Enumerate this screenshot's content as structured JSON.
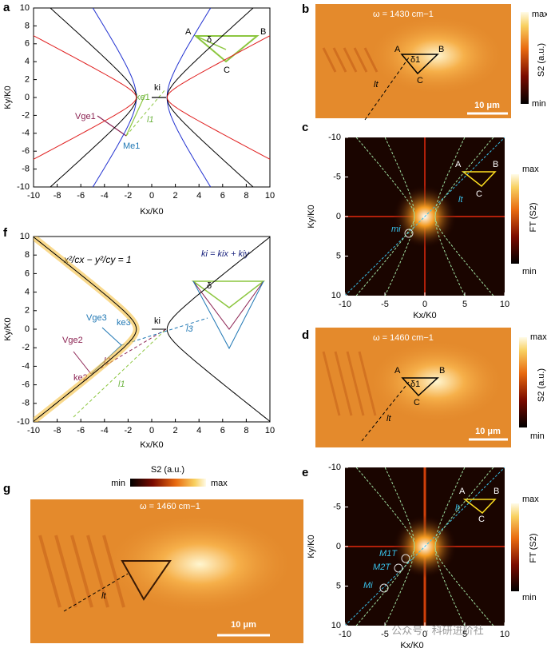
{
  "panels": {
    "a": {
      "label": "a",
      "x_label": "Kx/K0",
      "y_label": "Ky/K0",
      "xticks": [
        -10,
        -8,
        -6,
        -4,
        -2,
        0,
        2,
        4,
        6,
        8,
        10
      ],
      "yticks": [
        -10,
        -8,
        -6,
        -4,
        -2,
        0,
        2,
        4,
        6,
        8,
        10
      ],
      "text": {
        "A": "A",
        "B": "B",
        "C": "C",
        "delta": "δ",
        "ki": "ki",
        "ke1": "ke1",
        "l1": "l1",
        "me1": "Me1",
        "vge1": "Vge1"
      }
    },
    "b": {
      "label": "b",
      "frequency": "ω = 1430 cm−1",
      "text": {
        "A": "A",
        "B": "B",
        "C": "C",
        "delta1": "δ1",
        "lt": "lt"
      },
      "scale_bar": "10 μm",
      "colorbar": {
        "title": "S2 (a.u.)",
        "max": "max",
        "min": "min"
      }
    },
    "c": {
      "label": "c",
      "x_label": "Kx/K0",
      "y_label": "Ky/K0",
      "xticks": [
        -10,
        -5,
        0,
        5,
        10
      ],
      "yticks": [
        -10,
        -5,
        0,
        5,
        10
      ],
      "y_inverted": true,
      "text": {
        "A": "A",
        "B": "B",
        "C": "C",
        "lt": "lt",
        "mi": "mi"
      },
      "colorbar": {
        "title": "FT (S2)",
        "max": "max",
        "min": "min"
      }
    },
    "d": {
      "label": "d",
      "frequency": "ω = 1460 cm−1",
      "text": {
        "A": "A",
        "B": "B",
        "C": "C",
        "delta1": "δ1",
        "lt": "lt"
      },
      "scale_bar": "10 μm",
      "colorbar": {
        "title": "S2 (a.u.)",
        "max": "max",
        "min": "min"
      }
    },
    "e": {
      "label": "e",
      "x_label": "Kx/K0",
      "y_label": "Ky/K0",
      "xticks": [
        -10,
        -5,
        0,
        5,
        10
      ],
      "yticks": [
        -10,
        -5,
        0,
        5,
        10
      ],
      "y_inverted": true,
      "text": {
        "A": "A",
        "B": "B",
        "C": "C",
        "lt": "lt",
        "m1t": "M1T",
        "m2t": "M2T",
        "mi": "Mi"
      },
      "colorbar": {
        "title": "FT (S2)",
        "max": "max",
        "min": "min"
      },
      "watermark": "公众号 · 科研进阶社"
    },
    "f": {
      "label": "f",
      "x_label": "Kx/K0",
      "y_label": "Ky/K0",
      "xticks": [
        -10,
        -8,
        -6,
        -4,
        -2,
        0,
        2,
        4,
        6,
        8,
        10
      ],
      "yticks": [
        -10,
        -8,
        -6,
        -4,
        -2,
        0,
        2,
        4,
        6,
        8,
        10
      ],
      "text": {
        "equation": "x²/cx − y²/cy = 1",
        "ki_sum": "ki = kix + kiy",
        "delta": "δ",
        "vge3": "Vge3",
        "ke3": "ke3",
        "ki": "ki",
        "l3": "l3",
        "l2": "l2",
        "vge2": "Vge2",
        "ke2": "ke2",
        "l1": "l1"
      }
    },
    "g": {
      "label": "g",
      "frequency": "ω = 1460 cm−1",
      "lt": "lt",
      "scale_bar": "10 μm",
      "colorbar": {
        "title": "S2 (a.u.)",
        "max": "max",
        "min": "min"
      }
    }
  }
}
